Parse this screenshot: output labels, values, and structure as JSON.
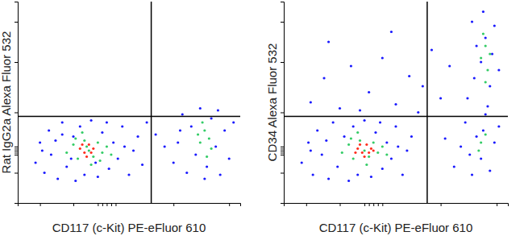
{
  "chart_data": [
    {
      "type": "scatter",
      "x_label": "CD117 (c-Kit) PE-eFluor 610",
      "y_label": "Rat IgG2a Alexa Fluor 532",
      "xlim": [
        0,
        100
      ],
      "ylim": [
        0,
        100
      ],
      "xticks": [
        10,
        25,
        36,
        38,
        40,
        42,
        44,
        70,
        95
      ],
      "yticks": [
        15,
        24,
        25,
        26,
        27,
        28,
        45,
        70,
        90
      ],
      "tick_labels": false,
      "gate_x": 60,
      "gate_y": 43,
      "series": [
        {
          "color": "#1a1aff",
          "x": [
            8,
            10,
            12,
            14,
            15,
            18,
            20,
            22,
            25,
            26,
            28,
            30,
            33,
            36,
            38,
            41,
            43,
            45,
            47,
            50,
            52,
            54,
            56,
            11,
            17,
            24,
            40,
            48,
            35,
            20,
            70,
            72,
            74,
            76,
            78,
            80,
            82,
            85,
            87,
            89,
            91,
            93,
            95,
            97,
            73,
            84,
            90,
            66,
            62,
            58
          ],
          "values": [
            20,
            30,
            15,
            36,
            24,
            12,
            40,
            18,
            33,
            11,
            38,
            14,
            41,
            13,
            35,
            17,
            30,
            22,
            38,
            14,
            26,
            33,
            19,
            26,
            31,
            22,
            40,
            28,
            20,
            34,
            20,
            30,
            44,
            15,
            38,
            24,
            47,
            18,
            42,
            28,
            14,
            36,
            22,
            40,
            36,
            12,
            46,
            28,
            34,
            40
          ]
        },
        {
          "color": "#33cc66",
          "x": [
            22,
            25,
            27,
            30,
            32,
            34,
            36,
            38,
            40,
            29,
            33,
            42,
            26,
            31,
            37,
            82,
            84,
            86,
            83,
            87,
            85,
            81
          ],
          "values": [
            25,
            29,
            22,
            31,
            26,
            23,
            30,
            25,
            28,
            35,
            19,
            24,
            32,
            28,
            21,
            30,
            36,
            32,
            40,
            27,
            23,
            34
          ]
        },
        {
          "color": "#ff2a1a",
          "x": [
            28,
            30,
            32,
            34,
            31,
            29,
            33
          ],
          "values": [
            27,
            25,
            29,
            27,
            23,
            29,
            25
          ]
        }
      ]
    },
    {
      "type": "scatter",
      "x_label": "CD117 (c-Kit) PE-eFluor 610",
      "y_label": "CD34 Alexa Fluor 532",
      "xlim": [
        0,
        100
      ],
      "ylim": [
        0,
        100
      ],
      "xticks": [
        10,
        25,
        36,
        38,
        40,
        42,
        44,
        70,
        95
      ],
      "yticks": [
        15,
        24,
        25,
        26,
        27,
        28,
        45,
        70,
        90
      ],
      "tick_labels": false,
      "gate_x": 64,
      "gate_y": 43,
      "series": [
        {
          "color": "#1a1aff",
          "x": [
            8,
            11,
            13,
            15,
            17,
            20,
            22,
            24,
            27,
            29,
            31,
            33,
            36,
            39,
            41,
            44,
            46,
            48,
            50,
            53,
            55,
            57,
            12,
            19,
            43,
            51,
            76,
            79,
            81,
            84,
            86,
            88,
            90,
            92,
            94,
            96,
            83,
            89,
            72,
            82,
            85,
            88,
            90,
            92,
            94,
            86,
            96,
            84,
            91,
            89,
            93,
            12,
            18,
            25,
            30,
            38,
            44,
            50,
            56,
            62,
            66,
            70,
            74,
            20,
            48,
            60,
            34
          ],
          "values": [
            20,
            30,
            14,
            36,
            24,
            12,
            40,
            18,
            33,
            11,
            38,
            14,
            41,
            13,
            35,
            17,
            30,
            22,
            38,
            14,
            26,
            33,
            26,
            31,
            40,
            28,
            18,
            28,
            40,
            14,
            33,
            22,
            44,
            16,
            30,
            38,
            24,
            36,
            32,
            52,
            62,
            70,
            82,
            58,
            88,
            78,
            66,
            90,
            48,
            95,
            74,
            50,
            62,
            47,
            68,
            55,
            72,
            49,
            63,
            58,
            76,
            52,
            68,
            80,
            85,
            45,
            46
          ]
        },
        {
          "color": "#33cc66",
          "x": [
            26,
            29,
            31,
            34,
            36,
            38,
            40,
            42,
            44,
            33,
            37,
            46,
            30,
            88,
            90,
            91,
            89,
            92,
            90,
            88,
            90,
            87
          ],
          "values": [
            25,
            29,
            22,
            31,
            26,
            23,
            30,
            25,
            28,
            35,
            19,
            24,
            32,
            72,
            78,
            66,
            84,
            74,
            60,
            30,
            34,
            26
          ]
        },
        {
          "color": "#ff2a1a",
          "x": [
            33,
            35,
            37,
            39,
            36,
            34,
            38,
            32,
            40
          ],
          "values": [
            27,
            25,
            29,
            27,
            23,
            29,
            25,
            25,
            26
          ]
        }
      ]
    }
  ]
}
